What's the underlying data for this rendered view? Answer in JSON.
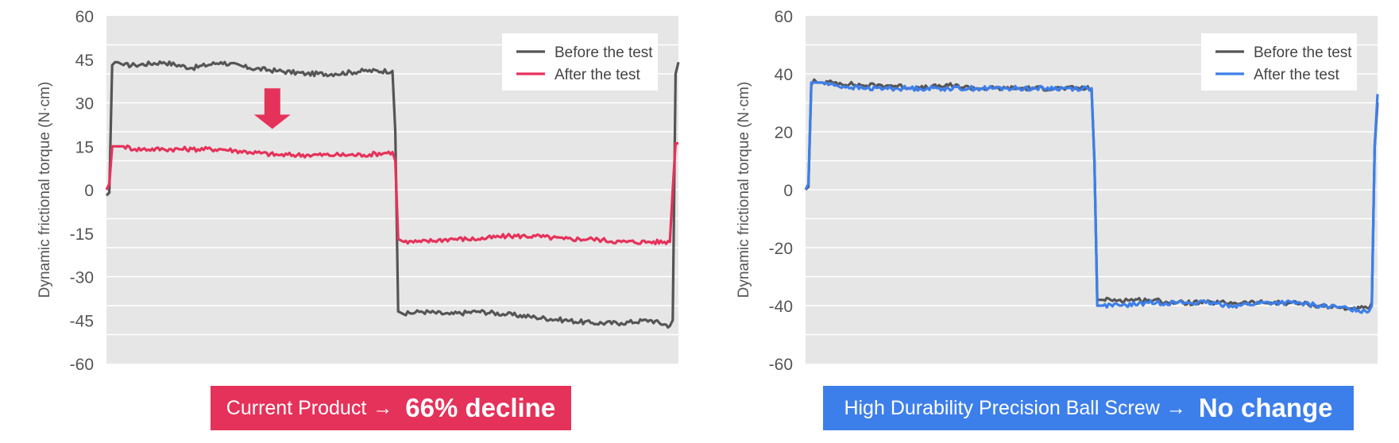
{
  "colors": {
    "plot_bg": "#e6e6e6",
    "grid": "#ffffff",
    "before": "#555555",
    "after_left": "#e5325a",
    "after_right": "#3d7fea",
    "axis_text": "#555555"
  },
  "captions": {
    "left": {
      "text": "Current Product",
      "arrow": "→",
      "emphasis": "66% decline"
    },
    "right": {
      "text": "High Durability Precision Ball Screw",
      "arrow": "→",
      "emphasis": "No change"
    }
  },
  "chart_data": [
    {
      "type": "line",
      "title": "",
      "ylabel": "Dynamic frictional torque (N·cm)",
      "xlabel": "",
      "ylim": [
        -60,
        60
      ],
      "yticks": [
        60,
        45,
        30,
        15,
        0,
        -15,
        -30,
        -45,
        -60
      ],
      "x": [
        0,
        0.5,
        1,
        1.5,
        2,
        3,
        5,
        10,
        15,
        20,
        25,
        30,
        35,
        40,
        45,
        50,
        50.5,
        51,
        52,
        55,
        60,
        65,
        70,
        75,
        80,
        85,
        90,
        95,
        98.5,
        99,
        99.5,
        100
      ],
      "xlim": [
        0,
        100
      ],
      "legend": "top-right",
      "series": [
        {
          "name": "Before the test",
          "values": [
            -2,
            -1,
            43,
            44,
            44,
            43,
            43,
            44,
            42,
            44,
            42,
            41,
            40,
            40,
            41,
            41,
            20,
            -42,
            -43,
            -42,
            -43,
            -42,
            -43,
            -44,
            -45,
            -46,
            -46,
            -45,
            -47,
            -45,
            40,
            44
          ]
        },
        {
          "name": "After the test",
          "values": [
            0,
            2,
            15,
            15,
            15,
            15,
            14,
            14,
            14,
            14,
            13,
            12,
            12,
            12,
            12,
            13,
            10,
            -17,
            -18,
            -18,
            -17,
            -17,
            -16,
            -16,
            -17,
            -17,
            -18,
            -18,
            -18,
            0,
            16,
            16
          ]
        }
      ],
      "annotation": "down-arrow"
    },
    {
      "type": "line",
      "title": "",
      "ylabel": "Dynamic frictional torque (N·cm)",
      "xlabel": "",
      "ylim": [
        -60,
        60
      ],
      "yticks": [
        60,
        40,
        20,
        0,
        -20,
        -40,
        -60
      ],
      "x": [
        0,
        0.5,
        1,
        1.5,
        2,
        3,
        5,
        10,
        15,
        20,
        25,
        30,
        35,
        40,
        45,
        50,
        50.5,
        51,
        52,
        55,
        60,
        65,
        70,
        75,
        80,
        85,
        90,
        95,
        98.5,
        99,
        99.5,
        100
      ],
      "xlim": [
        0,
        100
      ],
      "legend": "top-right",
      "series": [
        {
          "name": "Before the test",
          "values": [
            0,
            1,
            36,
            38,
            37,
            37,
            37,
            36,
            36,
            35,
            36,
            35,
            35,
            35,
            35,
            35,
            10,
            -38,
            -38,
            -38,
            -38,
            -39,
            -39,
            -39,
            -39,
            -39,
            -40,
            -41,
            -41,
            -39,
            15,
            30
          ]
        },
        {
          "name": "After the test",
          "values": [
            0,
            2,
            37,
            37,
            37,
            37,
            36,
            35,
            35,
            35,
            35,
            35,
            35,
            35,
            35,
            35,
            10,
            -40,
            -40,
            -40,
            -39,
            -39,
            -39,
            -40,
            -39,
            -39,
            -40,
            -41,
            -42,
            -40,
            15,
            33
          ]
        }
      ]
    }
  ]
}
